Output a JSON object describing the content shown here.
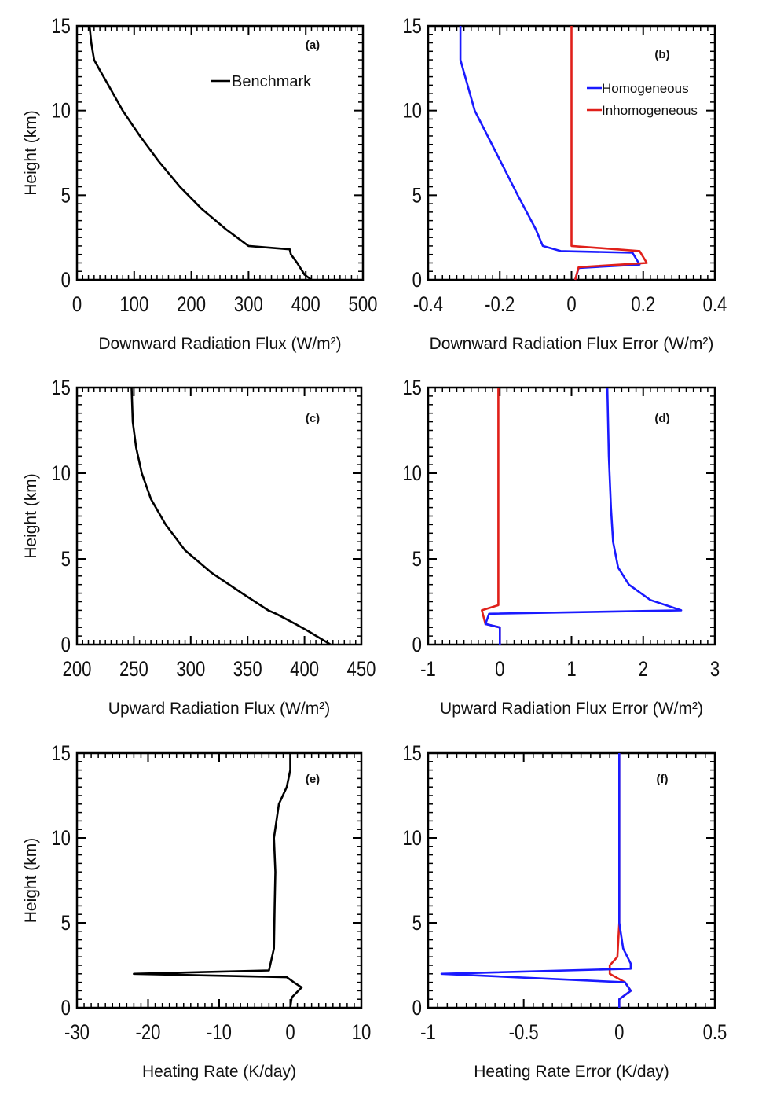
{
  "chart_data": [
    {
      "id": "a",
      "type": "line",
      "panel_label": "(a)",
      "xlabel": "Downward Radiation Flux  (W/m²)",
      "ylabel": "Height (km)",
      "xlim": [
        0,
        500
      ],
      "ylim": [
        0,
        15
      ],
      "xticks": [
        0,
        100,
        200,
        300,
        400,
        500
      ],
      "xtick_labels": [
        "0",
        "100",
        "200",
        "300",
        "400",
        "500"
      ],
      "yticks": [
        0,
        5,
        10,
        15
      ],
      "ytick_labels": [
        "0",
        "5",
        "10",
        "15"
      ],
      "legend": {
        "position": "top-right"
      },
      "series": [
        {
          "name": "Benchmark",
          "color": "#000000",
          "legend": true,
          "points": [
            [
              410,
              0
            ],
            [
              398,
              0.3
            ],
            [
              385,
              1.0
            ],
            [
              374,
              1.5
            ],
            [
              372,
              1.8
            ],
            [
              300,
              2.0
            ],
            [
              260,
              3.0
            ],
            [
              218,
              4.2
            ],
            [
              180,
              5.5
            ],
            [
              143,
              7.0
            ],
            [
              110,
              8.5
            ],
            [
              80,
              10.0
            ],
            [
              55,
              11.5
            ],
            [
              38,
              12.5
            ],
            [
              30,
              13.0
            ],
            [
              25,
              14.0
            ],
            [
              22,
              15.0
            ]
          ]
        }
      ]
    },
    {
      "id": "b",
      "type": "line",
      "panel_label": "(b)",
      "xlabel": "Downward Radiation Flux Error  (W/m²)",
      "ylabel": "",
      "xlim": [
        -0.4,
        0.4
      ],
      "ylim": [
        0,
        15
      ],
      "xticks": [
        -0.4,
        -0.2,
        0,
        0.2,
        0.4
      ],
      "xtick_labels": [
        "-0.4",
        "-0.2",
        "0",
        "0.2",
        "0.4"
      ],
      "yticks": [
        0,
        5,
        10,
        15
      ],
      "ytick_labels": [
        "0",
        "5",
        "10",
        "15"
      ],
      "legend": {
        "position": "top-right"
      },
      "series": [
        {
          "name": "Homogeneous",
          "color": "#1a1aff",
          "legend": true,
          "points": [
            [
              0.01,
              0
            ],
            [
              0.02,
              0.7
            ],
            [
              0.19,
              0.9
            ],
            [
              0.17,
              1.6
            ],
            [
              -0.03,
              1.7
            ],
            [
              -0.08,
              2.0
            ],
            [
              -0.1,
              3.0
            ],
            [
              -0.15,
              5.0
            ],
            [
              -0.21,
              7.5
            ],
            [
              -0.27,
              10.0
            ],
            [
              -0.29,
              11.5
            ],
            [
              -0.31,
              13.0
            ],
            [
              -0.31,
              15.0
            ]
          ]
        },
        {
          "name": "Inhomogeneous",
          "color": "#e0201a",
          "legend": true,
          "points": [
            [
              0.01,
              0
            ],
            [
              0.02,
              0.75
            ],
            [
              0.21,
              1.0
            ],
            [
              0.19,
              1.7
            ],
            [
              0.0,
              2.0
            ],
            [
              0.0,
              15.0
            ]
          ]
        }
      ]
    },
    {
      "id": "c",
      "type": "line",
      "panel_label": "(c)",
      "xlabel": "Upward Radiation Flux  (W/m²)",
      "ylabel": "Height (km)",
      "xlim": [
        200,
        450
      ],
      "ylim": [
        0,
        15
      ],
      "xticks": [
        200,
        250,
        300,
        350,
        400,
        450
      ],
      "xtick_labels": [
        "200",
        "250",
        "300",
        "350",
        "400",
        "450"
      ],
      "yticks": [
        0,
        5,
        10,
        15
      ],
      "ytick_labels": [
        "0",
        "5",
        "10",
        "15"
      ],
      "series": [
        {
          "name": "",
          "color": "#000000",
          "legend": false,
          "points": [
            [
              423,
              0
            ],
            [
              403,
              0.8
            ],
            [
              392,
              1.2
            ],
            [
              375,
              1.8
            ],
            [
              368,
              2.0
            ],
            [
              345,
              3.0
            ],
            [
              318,
              4.2
            ],
            [
              295,
              5.5
            ],
            [
              278,
              7.0
            ],
            [
              265,
              8.5
            ],
            [
              257,
              10.0
            ],
            [
              252,
              11.5
            ],
            [
              249,
              13.0
            ],
            [
              248,
              15.0
            ]
          ]
        }
      ]
    },
    {
      "id": "d",
      "type": "line",
      "panel_label": "(d)",
      "xlabel": "Upward Radiation Flux Error  (W/m²)",
      "ylabel": "",
      "xlim": [
        -1,
        3
      ],
      "ylim": [
        0,
        15
      ],
      "xticks": [
        -1,
        0,
        1,
        2,
        3
      ],
      "xtick_labels": [
        "-1",
        "0",
        "1",
        "2",
        "3"
      ],
      "yticks": [
        0,
        5,
        10,
        15
      ],
      "ytick_labels": [
        "0",
        "5",
        "10",
        "15"
      ],
      "series": [
        {
          "name": "Inhomogeneous",
          "color": "#e0201a",
          "legend": false,
          "points": [
            [
              0.0,
              0
            ],
            [
              0.0,
              1.0
            ],
            [
              -0.2,
              1.2
            ],
            [
              -0.25,
              2.0
            ],
            [
              -0.02,
              2.3
            ],
            [
              -0.02,
              5.0
            ],
            [
              -0.02,
              15.0
            ]
          ]
        },
        {
          "name": "Homogeneous",
          "color": "#1a1aff",
          "legend": false,
          "points": [
            [
              0.0,
              0
            ],
            [
              0.0,
              1.0
            ],
            [
              -0.2,
              1.2
            ],
            [
              -0.15,
              1.8
            ],
            [
              2.53,
              2.0
            ],
            [
              2.1,
              2.6
            ],
            [
              1.8,
              3.5
            ],
            [
              1.65,
              4.5
            ],
            [
              1.58,
              6.0
            ],
            [
              1.55,
              8.0
            ],
            [
              1.52,
              11.0
            ],
            [
              1.5,
              15.0
            ]
          ]
        }
      ]
    },
    {
      "id": "e",
      "type": "line",
      "panel_label": "(e)",
      "xlabel": "Heating Rate  (K/day)",
      "ylabel": "Height (km)",
      "xlim": [
        -30,
        10
      ],
      "ylim": [
        0,
        15
      ],
      "xticks": [
        -30,
        -20,
        -10,
        0,
        10
      ],
      "xtick_labels": [
        "-30",
        "-20",
        "-10",
        "0",
        "10"
      ],
      "yticks": [
        0,
        5,
        10,
        15
      ],
      "ytick_labels": [
        "0",
        "5",
        "10",
        "15"
      ],
      "series": [
        {
          "name": "",
          "color": "#000000",
          "legend": false,
          "points": [
            [
              0.0,
              0
            ],
            [
              0.2,
              0.6
            ],
            [
              1.6,
              1.2
            ],
            [
              0.5,
              1.5
            ],
            [
              -0.5,
              1.8
            ],
            [
              -22,
              2.0
            ],
            [
              -3.0,
              2.2
            ],
            [
              -2.3,
              3.5
            ],
            [
              -2.2,
              6.0
            ],
            [
              -2.1,
              8.0
            ],
            [
              -2.3,
              10.0
            ],
            [
              -1.6,
              12.0
            ],
            [
              -0.5,
              13.0
            ],
            [
              0.0,
              14.0
            ],
            [
              0.0,
              15.0
            ]
          ]
        }
      ]
    },
    {
      "id": "f",
      "type": "line",
      "panel_label": "(f)",
      "xlabel": "Heating Rate Error  (K/day)",
      "ylabel": "",
      "xlim": [
        -1,
        0.5
      ],
      "ylim": [
        0,
        15
      ],
      "xticks": [
        -1,
        -0.5,
        0,
        0.5
      ],
      "xtick_labels": [
        "-1",
        "-0.5",
        "0",
        "0.5"
      ],
      "yticks": [
        0,
        5,
        10,
        15
      ],
      "ytick_labels": [
        "0",
        "5",
        "10",
        "15"
      ],
      "series": [
        {
          "name": "Inhomogeneous",
          "color": "#e0201a",
          "legend": false,
          "points": [
            [
              0.0,
              0
            ],
            [
              0.0,
              0.5
            ],
            [
              0.06,
              1.0
            ],
            [
              0.03,
              1.5
            ],
            [
              -0.05,
              2.0
            ],
            [
              -0.05,
              2.5
            ],
            [
              -0.01,
              3.0
            ],
            [
              0.0,
              5.0
            ],
            [
              0.0,
              15.0
            ]
          ]
        },
        {
          "name": "Homogeneous",
          "color": "#1a1aff",
          "legend": false,
          "points": [
            [
              0.0,
              0
            ],
            [
              0.0,
              0.5
            ],
            [
              0.06,
              1.0
            ],
            [
              0.03,
              1.5
            ],
            [
              -0.93,
              2.0
            ],
            [
              0.06,
              2.3
            ],
            [
              0.06,
              2.6
            ],
            [
              0.02,
              3.5
            ],
            [
              0.0,
              5.0
            ],
            [
              0.0,
              15.0
            ]
          ]
        }
      ]
    }
  ]
}
